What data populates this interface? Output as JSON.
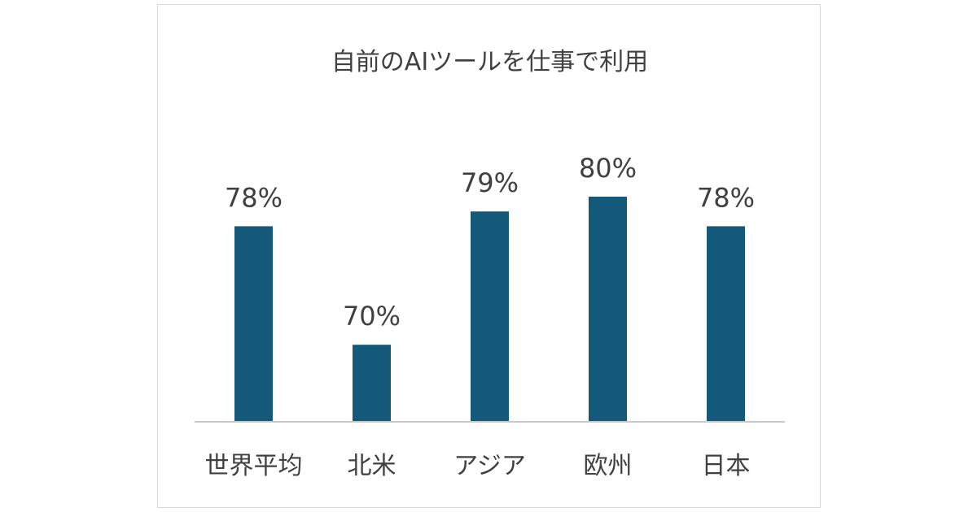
{
  "chart_data": {
    "type": "bar",
    "title": "自前のAIツールを仕事で利用",
    "categories": [
      "世界平均",
      "北米",
      "アジア",
      "欧州",
      "日本"
    ],
    "values": [
      78,
      70,
      79,
      80,
      78
    ],
    "data_labels": [
      "78%",
      "70%",
      "79%",
      "80%",
      "78%"
    ],
    "unit": "%",
    "bar_color": "#14587a",
    "axis_color": "#c8c8c8",
    "text_color": "#404040",
    "ylim": [
      64.8,
      80
    ],
    "grid": false,
    "legend": "none"
  }
}
